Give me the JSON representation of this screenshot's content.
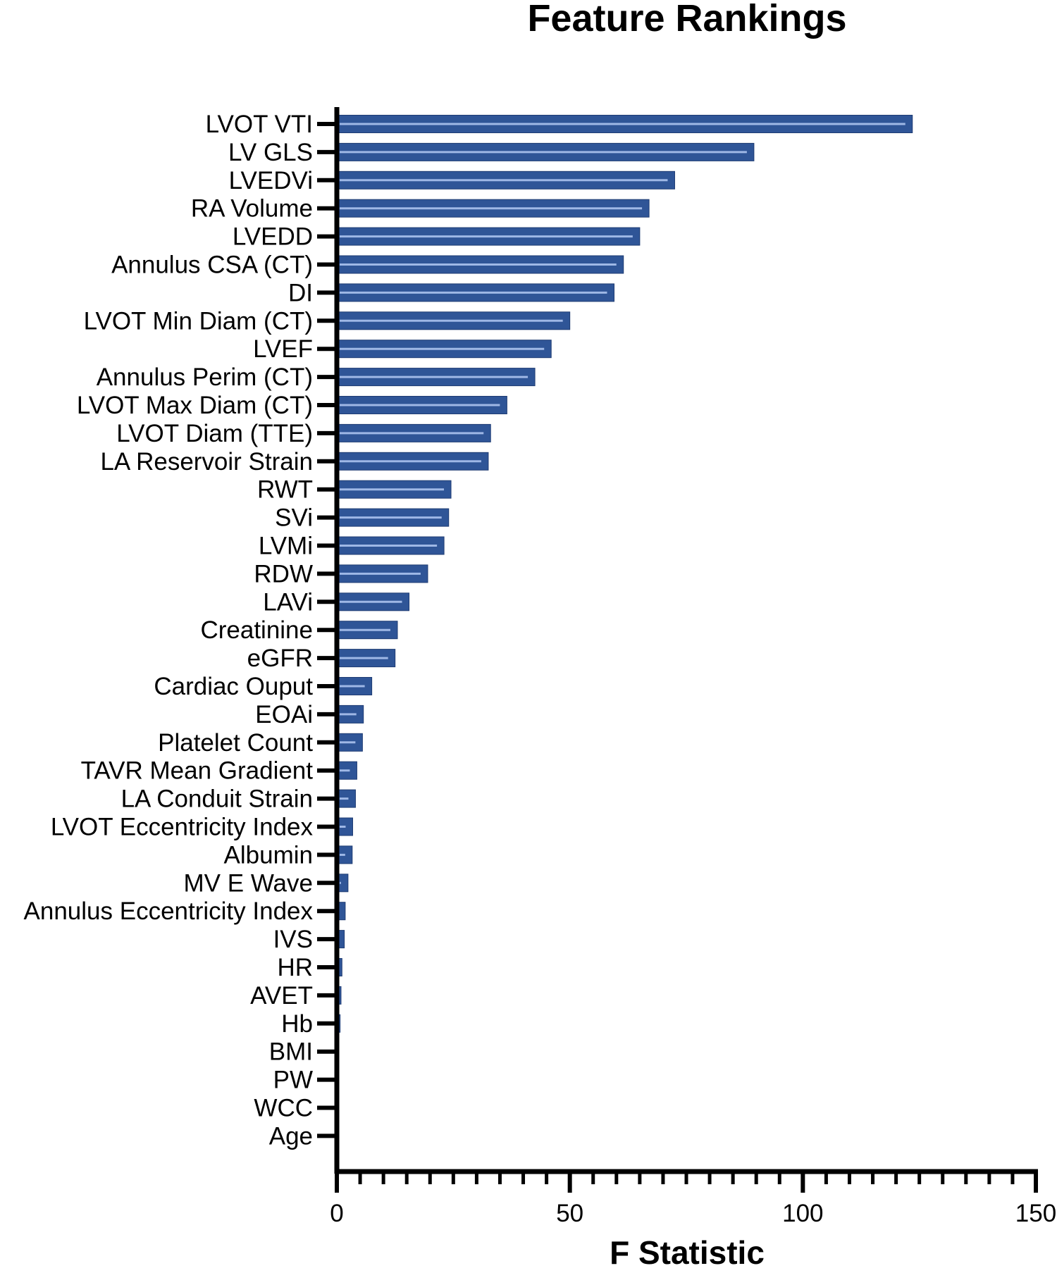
{
  "chart_data": {
    "type": "bar",
    "orientation": "horizontal",
    "title": "Feature Rankings",
    "xlabel": "F Statistic",
    "ylabel": "",
    "xlim": [
      0,
      150
    ],
    "xticks": [
      0,
      50,
      100,
      150
    ],
    "grid": false,
    "colors": {
      "bar": "#2f5597",
      "bar_stroke": "#1f3c73",
      "bar_highlight": "#9fb8e6",
      "axis": "#000000"
    },
    "categories": [
      "LVOT VTI",
      "LV GLS",
      "LVEDVi",
      "RA Volume",
      "LVEDD",
      "Annulus CSA (CT)",
      "DI",
      "LVOT Min Diam (CT)",
      "LVEF",
      "Annulus Perim (CT)",
      "LVOT Max Diam (CT)",
      "LVOT Diam (TTE)",
      "LA Reservoir Strain",
      "RWT",
      "SVi",
      "LVMi",
      "RDW",
      "LAVi",
      "Creatinine",
      "eGFR",
      "Cardiac Ouput",
      "EOAi",
      "Platelet Count",
      "TAVR Mean Gradient",
      "LA Conduit Strain",
      "LVOT Eccentricity Index",
      "Albumin",
      "MV E Wave",
      "Annulus Eccentricity Index",
      "IVS",
      "HR",
      "AVET",
      "Hb",
      "BMI",
      "PW",
      "WCC",
      "Age"
    ],
    "values": [
      123.5,
      89.5,
      72.5,
      67,
      65,
      61.5,
      59.5,
      50,
      46,
      42.5,
      36.5,
      33,
      32.5,
      24.5,
      24,
      23,
      19.5,
      15.5,
      13,
      12.5,
      7.5,
      5.7,
      5.5,
      4.3,
      4.0,
      3.4,
      3.3,
      2.4,
      1.8,
      1.6,
      1.1,
      0.9,
      0.7,
      0.3,
      0.25,
      0.2,
      0.15
    ]
  }
}
